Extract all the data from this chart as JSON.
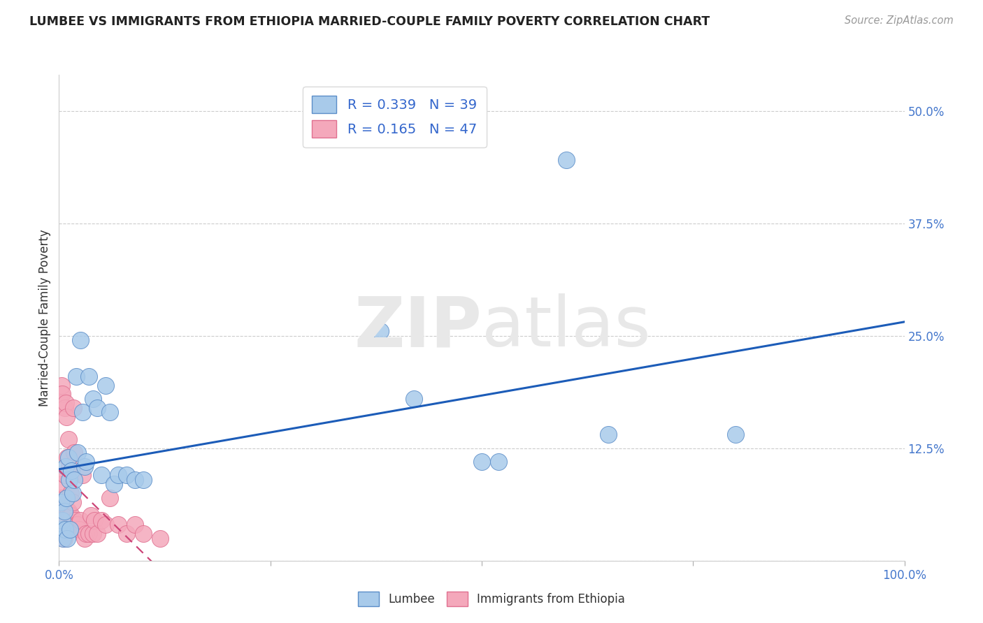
{
  "title": "LUMBEE VS IMMIGRANTS FROM ETHIOPIA MARRIED-COUPLE FAMILY POVERTY CORRELATION CHART",
  "source": "Source: ZipAtlas.com",
  "ylabel": "Married-Couple Family Poverty",
  "xlabel": "",
  "xlim": [
    0,
    1.0
  ],
  "ylim": [
    0.0,
    0.54
  ],
  "yticks": [
    0.0,
    0.125,
    0.25,
    0.375,
    0.5
  ],
  "yticklabels": [
    "",
    "12.5%",
    "25.0%",
    "37.5%",
    "50.0%"
  ],
  "xticks": [
    0.0,
    0.25,
    0.5,
    0.75,
    1.0
  ],
  "xticklabels": [
    "0.0%",
    "",
    "",
    "",
    "100.0%"
  ],
  "watermark_zip": "ZIP",
  "watermark_atlas": "atlas",
  "lumbee_color": "#A8CAEA",
  "ethiopia_color": "#F4A8BB",
  "lumbee_edge_color": "#5B8DC8",
  "ethiopia_edge_color": "#E07090",
  "lumbee_line_color": "#1C5CB8",
  "ethiopia_line_color": "#CC4477",
  "lumbee_R": "0.339",
  "lumbee_N": "39",
  "ethiopia_R": "0.165",
  "ethiopia_N": "47",
  "lumbee_x": [
    0.002,
    0.003,
    0.004,
    0.005,
    0.006,
    0.007,
    0.008,
    0.009,
    0.01,
    0.011,
    0.012,
    0.013,
    0.015,
    0.016,
    0.018,
    0.02,
    0.022,
    0.025,
    0.028,
    0.03,
    0.032,
    0.035,
    0.04,
    0.045,
    0.05,
    0.055,
    0.06,
    0.065,
    0.07,
    0.08,
    0.09,
    0.1,
    0.38,
    0.42,
    0.5,
    0.52,
    0.6,
    0.65,
    0.8
  ],
  "lumbee_y": [
    0.065,
    0.035,
    0.045,
    0.025,
    0.055,
    0.035,
    0.105,
    0.07,
    0.025,
    0.115,
    0.09,
    0.035,
    0.1,
    0.075,
    0.09,
    0.205,
    0.12,
    0.245,
    0.165,
    0.105,
    0.11,
    0.205,
    0.18,
    0.17,
    0.095,
    0.195,
    0.165,
    0.085,
    0.095,
    0.095,
    0.09,
    0.09,
    0.255,
    0.18,
    0.11,
    0.11,
    0.445,
    0.14,
    0.14
  ],
  "ethiopia_x": [
    0.001,
    0.002,
    0.002,
    0.003,
    0.003,
    0.004,
    0.004,
    0.005,
    0.005,
    0.006,
    0.006,
    0.007,
    0.007,
    0.008,
    0.009,
    0.01,
    0.01,
    0.011,
    0.011,
    0.012,
    0.013,
    0.014,
    0.015,
    0.016,
    0.017,
    0.018,
    0.019,
    0.02,
    0.022,
    0.024,
    0.025,
    0.028,
    0.03,
    0.032,
    0.035,
    0.038,
    0.04,
    0.042,
    0.045,
    0.05,
    0.055,
    0.06,
    0.07,
    0.08,
    0.09,
    0.1,
    0.12
  ],
  "ethiopia_y": [
    0.04,
    0.185,
    0.175,
    0.195,
    0.07,
    0.085,
    0.185,
    0.05,
    0.065,
    0.045,
    0.025,
    0.17,
    0.095,
    0.175,
    0.16,
    0.115,
    0.055,
    0.135,
    0.055,
    0.105,
    0.05,
    0.075,
    0.05,
    0.065,
    0.17,
    0.12,
    0.045,
    0.04,
    0.04,
    0.035,
    0.045,
    0.095,
    0.025,
    0.03,
    0.03,
    0.05,
    0.03,
    0.045,
    0.03,
    0.045,
    0.04,
    0.07,
    0.04,
    0.03,
    0.04,
    0.03,
    0.025
  ]
}
